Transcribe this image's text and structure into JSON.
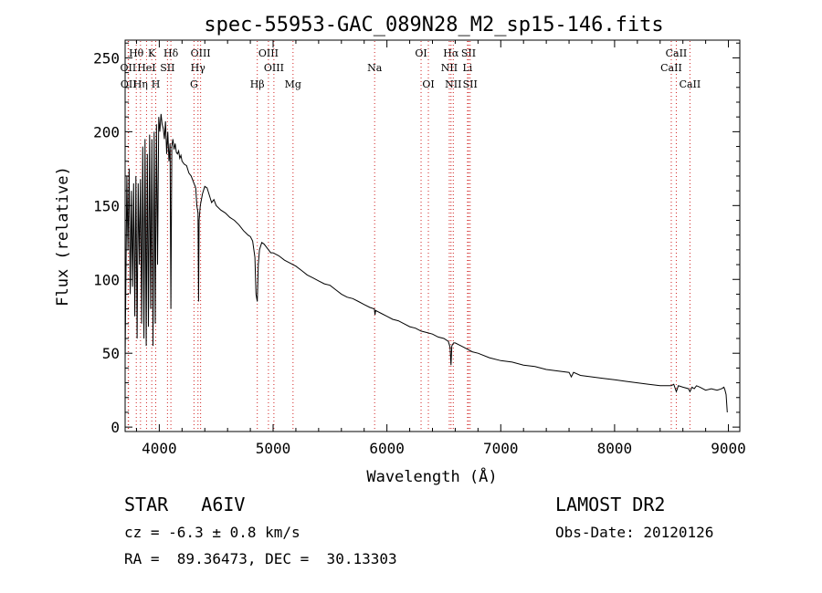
{
  "chart_data": {
    "type": "line",
    "title": "spec-55953-GAC_089N28_M2_sp15-146.fits",
    "xlabel": "Wavelength (Å)",
    "ylabel": "Flux (relative)",
    "xlim": [
      3700,
      9100
    ],
    "ylim": [
      -3,
      262
    ],
    "xticks": [
      4000,
      5000,
      6000,
      7000,
      8000,
      9000
    ],
    "yticks": [
      0,
      50,
      100,
      150,
      200,
      250
    ],
    "grid": false,
    "line_color": "#000000",
    "marker_color": "#d02020",
    "series": [
      {
        "x": [
          3700,
          3715,
          3725,
          3735,
          3745,
          3755,
          3765,
          3775,
          3785,
          3795,
          3805,
          3815,
          3825,
          3835,
          3845,
          3855,
          3865,
          3875,
          3885,
          3895,
          3905,
          3915,
          3925,
          3935,
          3945,
          3955,
          3965,
          3975,
          3985,
          3995,
          4005,
          4015,
          4025,
          4035,
          4045,
          4055,
          4065,
          4075,
          4085,
          4095,
          4102,
          4110,
          4120,
          4130,
          4140,
          4150,
          4160,
          4170,
          4180,
          4190,
          4200,
          4220,
          4240,
          4260,
          4280,
          4300,
          4320,
          4330,
          4340,
          4345,
          4350,
          4360,
          4380,
          4400,
          4420,
          4440,
          4460,
          4480,
          4500,
          4540,
          4580,
          4620,
          4660,
          4700,
          4740,
          4780,
          4800,
          4820,
          4840,
          4850,
          4861,
          4870,
          4880,
          4900,
          4920,
          4940,
          4960,
          4980,
          5000,
          5050,
          5100,
          5150,
          5200,
          5250,
          5300,
          5350,
          5400,
          5450,
          5500,
          5550,
          5600,
          5650,
          5700,
          5750,
          5800,
          5850,
          5890,
          5895,
          5900,
          5950,
          6000,
          6050,
          6100,
          6150,
          6200,
          6250,
          6300,
          6350,
          6400,
          6450,
          6500,
          6540,
          6555,
          6563,
          6570,
          6585,
          6600,
          6650,
          6700,
          6750,
          6800,
          6900,
          7000,
          7100,
          7200,
          7300,
          7400,
          7500,
          7600,
          7620,
          7640,
          7700,
          7800,
          7900,
          8000,
          8100,
          8200,
          8300,
          8400,
          8498,
          8520,
          8542,
          8560,
          8600,
          8650,
          8662,
          8680,
          8700,
          8720,
          8750,
          8800,
          8850,
          8900,
          8940,
          8960,
          8970,
          8980,
          8990
        ],
        "y": [
          45,
          170,
          120,
          175,
          90,
          160,
          95,
          165,
          75,
          170,
          60,
          165,
          110,
          168,
          70,
          190,
          60,
          195,
          55,
          185,
          68,
          198,
          80,
          195,
          55,
          200,
          70,
          205,
          110,
          210,
          200,
          212,
          205,
          202,
          195,
          207,
          185,
          200,
          180,
          192,
          80,
          190,
          195,
          188,
          192,
          186,
          185,
          187,
          182,
          184,
          180,
          178,
          177,
          172,
          170,
          166,
          162,
          150,
          145,
          85,
          140,
          150,
          158,
          163,
          162,
          157,
          152,
          154,
          150,
          147,
          145,
          142,
          140,
          137,
          133,
          130,
          129,
          126,
          115,
          90,
          85,
          110,
          120,
          125,
          124,
          122,
          120,
          118,
          118,
          116,
          113,
          111,
          109,
          106,
          103,
          101,
          99,
          97,
          96,
          93,
          90,
          88,
          87,
          85,
          83,
          81,
          80,
          76,
          79,
          77,
          75,
          73,
          72,
          70,
          68,
          67,
          65,
          64,
          63,
          61,
          60,
          58,
          54,
          42,
          55,
          57,
          57,
          55,
          53,
          51,
          50,
          47,
          45,
          44,
          42,
          41,
          39,
          38,
          37,
          34,
          37,
          35,
          34,
          33,
          32,
          31,
          30,
          29,
          28,
          28,
          29,
          24,
          28,
          27,
          26,
          24,
          27,
          26,
          28,
          27,
          25,
          26,
          25,
          26,
          27,
          25,
          22,
          10
        ]
      }
    ],
    "line_markers": [
      {
        "label": "Hθ",
        "wave": 3798,
        "row": 1
      },
      {
        "label": "K",
        "wave": 3934,
        "row": 1
      },
      {
        "label": "Hδ",
        "wave": 4102,
        "row": 1
      },
      {
        "label": "OIII",
        "wave": 4363,
        "row": 1
      },
      {
        "label": "OIII",
        "wave": 4959,
        "row": 1
      },
      {
        "label": "OI",
        "wave": 6300,
        "row": 1
      },
      {
        "label": "Hα",
        "wave": 6563,
        "row": 1
      },
      {
        "label": "SII",
        "wave": 6717,
        "row": 1
      },
      {
        "label": "CaII",
        "wave": 8542,
        "row": 1
      },
      {
        "label": "OII",
        "wave": 3727,
        "row": 2
      },
      {
        "label": "HeI",
        "wave": 3888,
        "row": 2
      },
      {
        "label": "SII",
        "wave": 4072,
        "row": 2
      },
      {
        "label": "Hγ",
        "wave": 4340,
        "row": 2
      },
      {
        "label": "OIII",
        "wave": 5007,
        "row": 2
      },
      {
        "label": "Na",
        "wave": 5892,
        "row": 2
      },
      {
        "label": "NII",
        "wave": 6548,
        "row": 2
      },
      {
        "label": "Li",
        "wave": 6708,
        "row": 2
      },
      {
        "label": "CaII",
        "wave": 8498,
        "row": 2
      },
      {
        "label": "OII",
        "wave": 3730,
        "row": 3
      },
      {
        "label": "Hη",
        "wave": 3835,
        "row": 3
      },
      {
        "label": "H",
        "wave": 3969,
        "row": 3
      },
      {
        "label": "G",
        "wave": 4305,
        "row": 3
      },
      {
        "label": "Hβ",
        "wave": 4861,
        "row": 3
      },
      {
        "label": "Mg",
        "wave": 5175,
        "row": 3
      },
      {
        "label": "OI",
        "wave": 6364,
        "row": 3
      },
      {
        "label": "NII",
        "wave": 6583,
        "row": 3
      },
      {
        "label": "SII",
        "wave": 6731,
        "row": 3
      },
      {
        "label": "CaII",
        "wave": 8662,
        "row": 3
      }
    ]
  },
  "info": {
    "class_text": "STAR   A6IV",
    "survey": "LAMOST DR2",
    "cz": "cz = -6.3 ± 0.8 km/s",
    "obs_date": "Obs-Date: 20120126",
    "radec": "RA =  89.36473, DEC =  30.13303"
  }
}
